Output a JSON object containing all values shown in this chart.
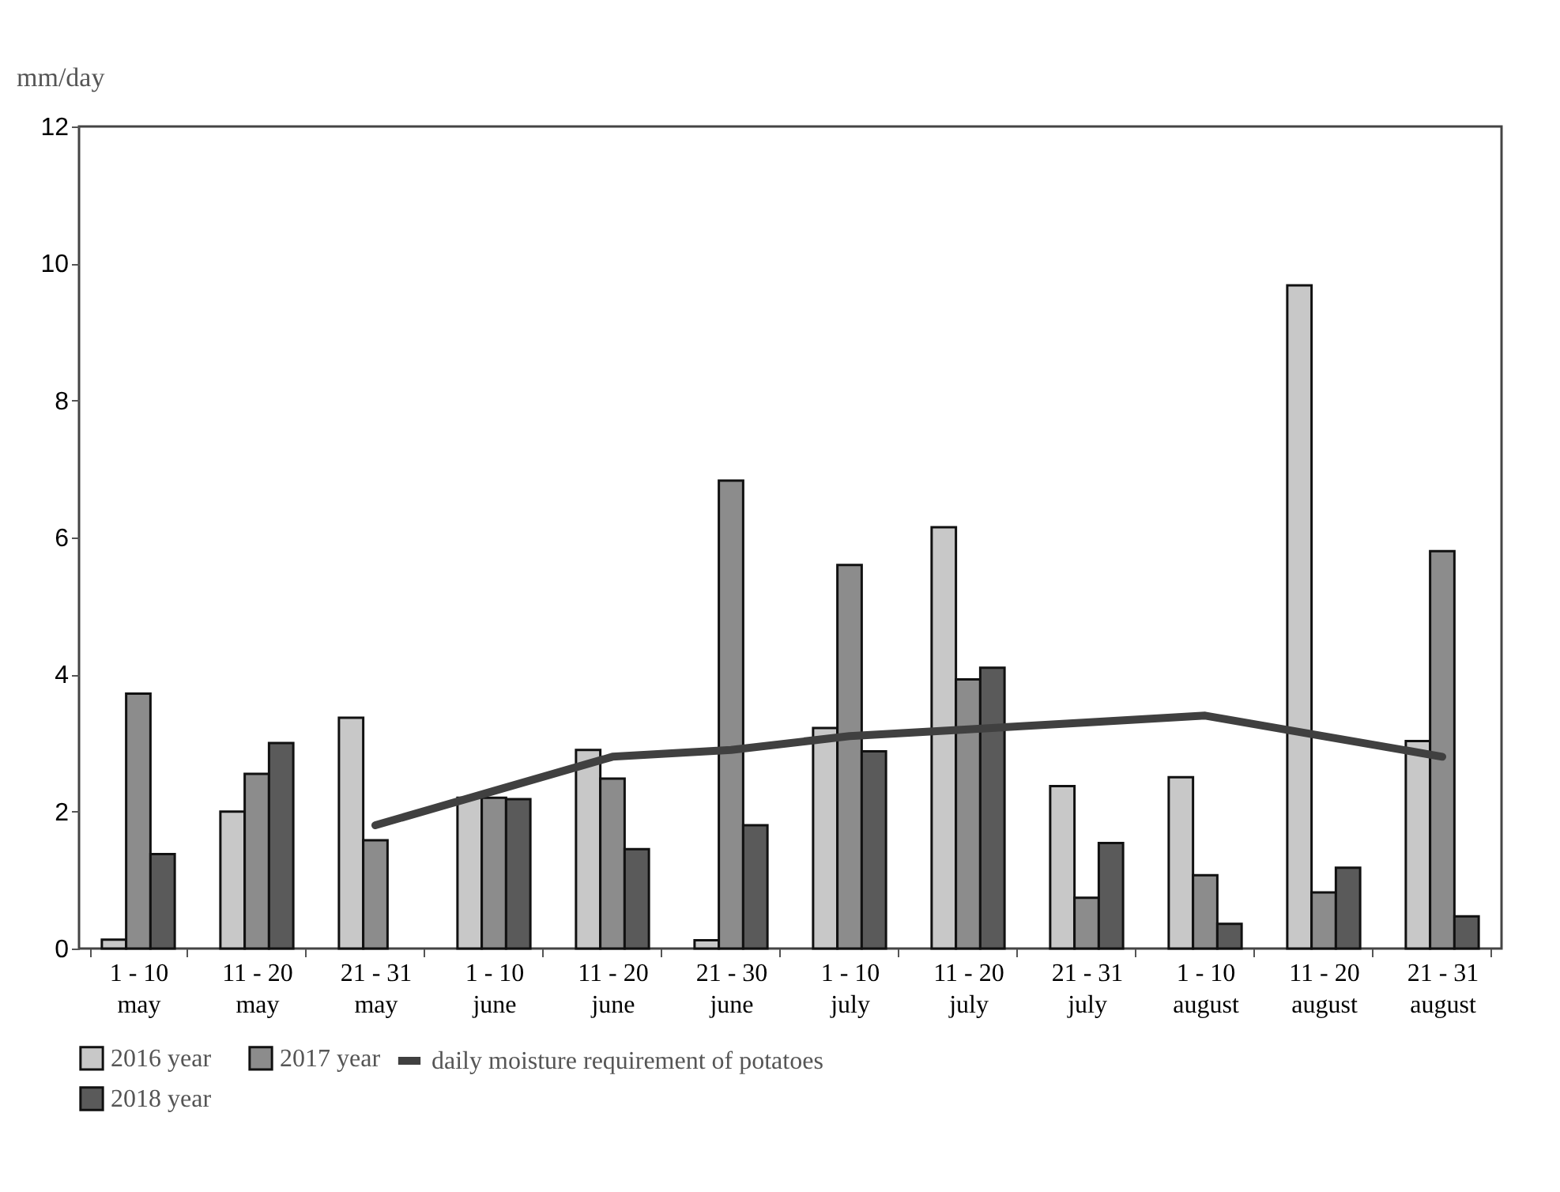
{
  "chart_data": {
    "type": "bar",
    "ylabel": "mm/day",
    "categories": [
      "1 - 10\nmay",
      "11 - 20\nmay",
      "21 - 31\nmay",
      "1 - 10\njune",
      "11 - 20\njune",
      "21 - 30\njune",
      "1 - 10\njuly",
      "11 - 20\njuly",
      "21 - 31\njuly",
      "1 - 10\naugust",
      "11 - 20\naugust",
      "21 - 31\naugust"
    ],
    "series": [
      {
        "name": "2016 year",
        "color": "#c8c8c8",
        "values": [
          0.13,
          2.0,
          3.37,
          2.2,
          2.9,
          0.12,
          3.22,
          6.15,
          2.37,
          2.5,
          9.68,
          3.03
        ]
      },
      {
        "name": "2017 year",
        "color": "#8c8c8c",
        "values": [
          3.72,
          2.55,
          1.58,
          2.2,
          2.48,
          6.83,
          5.6,
          3.93,
          0.74,
          1.07,
          0.82,
          5.8
        ]
      },
      {
        "name": "2018 year",
        "color": "#5a5a5a",
        "values": [
          1.38,
          3.0,
          null,
          2.18,
          1.45,
          1.8,
          2.88,
          4.1,
          1.54,
          0.36,
          1.18,
          0.47
        ]
      },
      {
        "name": "daily moisture requirement of potatoes",
        "type": "line",
        "color": "#404040",
        "values": [
          null,
          null,
          1.8,
          2.3,
          2.8,
          2.9,
          3.1,
          3.2,
          3.3,
          3.4,
          3.1,
          2.8
        ]
      }
    ],
    "ylim": [
      0,
      12
    ],
    "yticks": [
      0,
      2,
      4,
      6,
      8,
      10,
      12
    ],
    "grid": false,
    "legend": "bottom"
  }
}
